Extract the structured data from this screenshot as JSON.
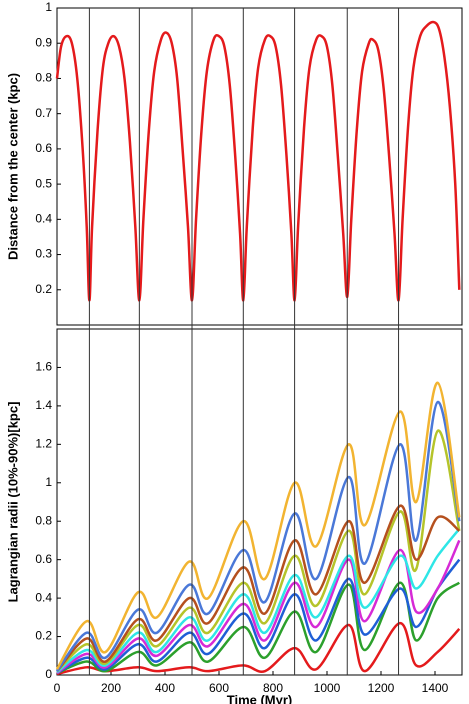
{
  "chart_data": [
    {
      "type": "line",
      "ylabel": "Distance from the center (kpc)",
      "x": [
        0,
        15,
        35,
        55,
        75,
        95,
        110,
        120,
        130,
        150,
        170,
        190,
        210,
        230,
        250,
        270,
        290,
        305,
        320,
        340,
        360,
        385,
        405,
        425,
        445,
        465,
        485,
        500,
        515,
        535,
        555,
        580,
        600,
        620,
        640,
        660,
        678,
        690,
        703,
        725,
        745,
        770,
        790,
        810,
        830,
        850,
        868,
        880,
        893,
        915,
        935,
        960,
        980,
        1000,
        1020,
        1040,
        1060,
        1075,
        1090,
        1110,
        1130,
        1155,
        1170,
        1190,
        1210,
        1230,
        1250,
        1265,
        1280,
        1300,
        1320,
        1345,
        1370,
        1395,
        1415,
        1435,
        1455,
        1475,
        1490
      ],
      "series": [
        {
          "color": "#e41a1c",
          "values": [
            0.8,
            0.89,
            0.92,
            0.9,
            0.8,
            0.6,
            0.38,
            0.17,
            0.38,
            0.65,
            0.83,
            0.9,
            0.92,
            0.89,
            0.8,
            0.62,
            0.38,
            0.17,
            0.4,
            0.65,
            0.82,
            0.91,
            0.93,
            0.9,
            0.8,
            0.6,
            0.38,
            0.17,
            0.4,
            0.65,
            0.82,
            0.91,
            0.92,
            0.89,
            0.78,
            0.58,
            0.36,
            0.17,
            0.38,
            0.66,
            0.83,
            0.91,
            0.92,
            0.89,
            0.78,
            0.58,
            0.36,
            0.17,
            0.38,
            0.66,
            0.83,
            0.91,
            0.92,
            0.89,
            0.78,
            0.58,
            0.36,
            0.18,
            0.4,
            0.65,
            0.82,
            0.9,
            0.91,
            0.88,
            0.77,
            0.58,
            0.36,
            0.17,
            0.4,
            0.66,
            0.83,
            0.92,
            0.95,
            0.96,
            0.94,
            0.86,
            0.72,
            0.5,
            0.2
          ]
        }
      ],
      "xlim": [
        0,
        1500
      ],
      "ylim": [
        0.1,
        1
      ],
      "yticks": [
        0.2,
        0.3,
        0.4,
        0.5,
        0.6,
        0.7,
        0.8,
        0.9,
        1
      ],
      "vlines": [
        120,
        305,
        500,
        690,
        880,
        1075,
        1265
      ]
    },
    {
      "type": "line",
      "ylabel": "Lagrangian radii (10%-90%)[kpc]",
      "xlabel": "Time (Myr)",
      "x": [
        0,
        110,
        180,
        300,
        370,
        490,
        560,
        690,
        770,
        880,
        960,
        1080,
        1140,
        1270,
        1330,
        1410,
        1490
      ],
      "series": [
        {
          "color": "#e41a1c",
          "values": [
            0.005,
            0.04,
            0.02,
            0.04,
            0.02,
            0.04,
            0.02,
            0.05,
            0.02,
            0.14,
            0.03,
            0.26,
            0.02,
            0.27,
            0.05,
            0.12,
            0.24
          ]
        },
        {
          "color": "#2ca02c",
          "values": [
            0.01,
            0.07,
            0.02,
            0.12,
            0.05,
            0.17,
            0.07,
            0.25,
            0.09,
            0.33,
            0.12,
            0.47,
            0.13,
            0.48,
            0.18,
            0.4,
            0.48
          ]
        },
        {
          "color": "#1f5fd6",
          "values": [
            0.01,
            0.09,
            0.03,
            0.16,
            0.07,
            0.22,
            0.11,
            0.32,
            0.14,
            0.42,
            0.18,
            0.5,
            0.21,
            0.45,
            0.25,
            0.45,
            0.6
          ]
        },
        {
          "color": "#d62ad6",
          "values": [
            0.01,
            0.11,
            0.04,
            0.19,
            0.1,
            0.26,
            0.15,
            0.37,
            0.18,
            0.48,
            0.25,
            0.6,
            0.28,
            0.65,
            0.33,
            0.45,
            0.7
          ]
        },
        {
          "color": "#2ee6e6",
          "values": [
            0.015,
            0.13,
            0.05,
            0.22,
            0.12,
            0.3,
            0.18,
            0.42,
            0.22,
            0.52,
            0.3,
            0.62,
            0.35,
            0.62,
            0.45,
            0.62,
            0.76
          ]
        },
        {
          "color": "#b5c42a",
          "values": [
            0.02,
            0.16,
            0.06,
            0.26,
            0.15,
            0.35,
            0.22,
            0.48,
            0.27,
            0.62,
            0.36,
            0.75,
            0.42,
            0.85,
            0.55,
            1.27,
            0.75
          ]
        },
        {
          "color": "#b5501e",
          "values": [
            0.02,
            0.19,
            0.07,
            0.29,
            0.18,
            0.4,
            0.27,
            0.56,
            0.32,
            0.7,
            0.42,
            0.8,
            0.48,
            0.88,
            0.6,
            0.82,
            0.75
          ]
        },
        {
          "color": "#4a78d8",
          "values": [
            0.02,
            0.22,
            0.09,
            0.34,
            0.22,
            0.47,
            0.32,
            0.65,
            0.38,
            0.84,
            0.5,
            1.03,
            0.58,
            1.2,
            0.7,
            1.42,
            0.8
          ]
        },
        {
          "color": "#f2b431",
          "values": [
            0.03,
            0.28,
            0.12,
            0.43,
            0.3,
            0.59,
            0.4,
            0.8,
            0.5,
            1.0,
            0.67,
            1.2,
            0.78,
            1.37,
            0.9,
            1.52,
            0.82
          ]
        }
      ],
      "xlim": [
        0,
        1500
      ],
      "ylim": [
        0,
        1.8
      ],
      "yticks": [
        0,
        0.2,
        0.4,
        0.6,
        0.8,
        1,
        1.2,
        1.4,
        1.6
      ],
      "xticks": [
        0,
        200,
        400,
        600,
        800,
        1000,
        1200,
        1400
      ]
    }
  ]
}
